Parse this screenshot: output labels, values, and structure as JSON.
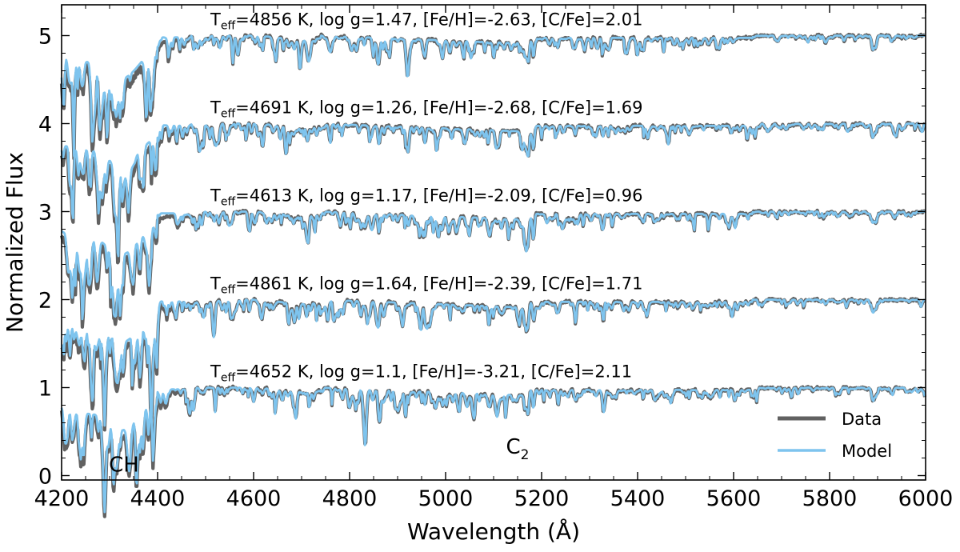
{
  "chart_data": {
    "type": "line",
    "xlabel": "Wavelength (Å)",
    "ylabel": "Normalized Flux",
    "xlim": [
      4200,
      6000
    ],
    "ylim": [
      -0.05,
      5.35
    ],
    "xticks": [
      4200,
      4400,
      4600,
      4800,
      5000,
      5200,
      5400,
      5600,
      5800,
      6000
    ],
    "yticks": [
      0,
      1,
      2,
      3,
      4,
      5
    ],
    "grid": false,
    "legend": {
      "position": "lower-right",
      "entries": [
        {
          "label": "Data",
          "color": "#616161"
        },
        {
          "label": "Model",
          "color": "#7ec4ee"
        }
      ]
    },
    "band_labels": [
      {
        "text": "CH",
        "x": 4330,
        "y": 0.1
      },
      {
        "text": "C",
        "subscript": "2",
        "x": 5150,
        "y": 0.25
      }
    ],
    "spectra": [
      {
        "offset": 5,
        "teff": "4856",
        "logg": "1.47",
        "feh": "-2.63",
        "cfe": "2.01",
        "label_x": 4510,
        "label_y": 5.12,
        "skew": 0.0
      },
      {
        "offset": 4,
        "teff": "4691",
        "logg": "1.26",
        "feh": "-2.68",
        "cfe": "1.69",
        "label_x": 4510,
        "label_y": 4.12,
        "skew": 0.7
      },
      {
        "offset": 3,
        "teff": "4613",
        "logg": "1.17",
        "feh": "-2.09",
        "cfe": "0.96",
        "label_x": 4510,
        "label_y": 3.12,
        "skew": 1.6
      },
      {
        "offset": 2,
        "teff": "4861",
        "logg": "1.64",
        "feh": "-2.39",
        "cfe": "1.71",
        "label_x": 4510,
        "label_y": 2.12,
        "skew": 2.3
      },
      {
        "offset": 1,
        "teff": "4652",
        "logg": "1.1",
        "feh": "-3.21",
        "cfe": "2.11",
        "label_x": 4510,
        "label_y": 1.12,
        "skew": 3.1
      }
    ],
    "series": [
      {
        "name": "Data",
        "color": "#616161"
      },
      {
        "name": "Model",
        "color": "#7ec4ee"
      }
    ]
  },
  "text": {
    "teff_main": "T",
    "teff_sub": "eff",
    "units_k": " K, log g=",
    "feh_prefix": ", [Fe/H]=",
    "cfe_prefix": ", [C/Fe]="
  }
}
